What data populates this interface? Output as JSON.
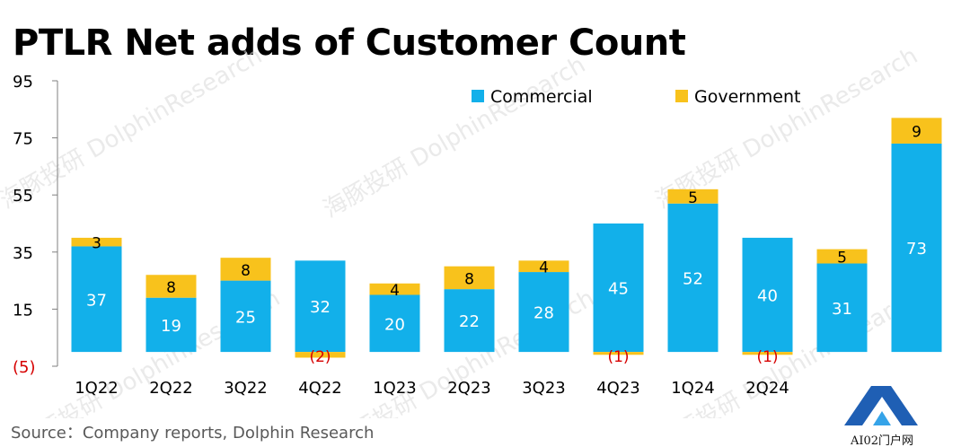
{
  "chart_data": {
    "type": "bar",
    "stacked": true,
    "title": "PTLR Net adds of Customer Count",
    "categories": [
      "1Q22",
      "2Q22",
      "3Q22",
      "4Q22",
      "1Q23",
      "2Q23",
      "3Q23",
      "4Q23",
      "1Q24",
      "2Q24",
      "",
      ""
    ],
    "series": [
      {
        "name": "Commercial",
        "color": "#12B0EA",
        "values": [
          37,
          19,
          25,
          32,
          20,
          22,
          28,
          45,
          52,
          40,
          31,
          73
        ]
      },
      {
        "name": "Government",
        "color": "#F8C21C",
        "values": [
          3,
          8,
          8,
          -2,
          4,
          8,
          4,
          -1,
          5,
          -1,
          5,
          9
        ]
      }
    ],
    "data_labels": {
      "commercial": [
        "37",
        "19",
        "25",
        "32",
        "20",
        "22",
        "28",
        "45",
        "52",
        "40",
        "31",
        "73"
      ],
      "government": [
        "3",
        "8",
        "8",
        "(2)",
        "4",
        "8",
        "4",
        "(1)",
        "5",
        "(1)",
        "5",
        "9"
      ]
    },
    "y_tick_labels": [
      "95",
      "75",
      "55",
      "35",
      "15",
      "(5)"
    ],
    "y_tick_values": [
      95,
      75,
      55,
      35,
      15,
      -5
    ],
    "ylim": [
      -5,
      95
    ],
    "xlabel": "",
    "ylabel": "",
    "legend": "top-right",
    "grid": false,
    "negative_label_color": "#D60000",
    "source": "Source：Company reports, Dolphin Research",
    "watermark": "海豚投研 DolphinResearch"
  },
  "logo": {
    "text": "AI02门户网",
    "colors": [
      "#1F5FB4",
      "#35A3E8"
    ]
  }
}
